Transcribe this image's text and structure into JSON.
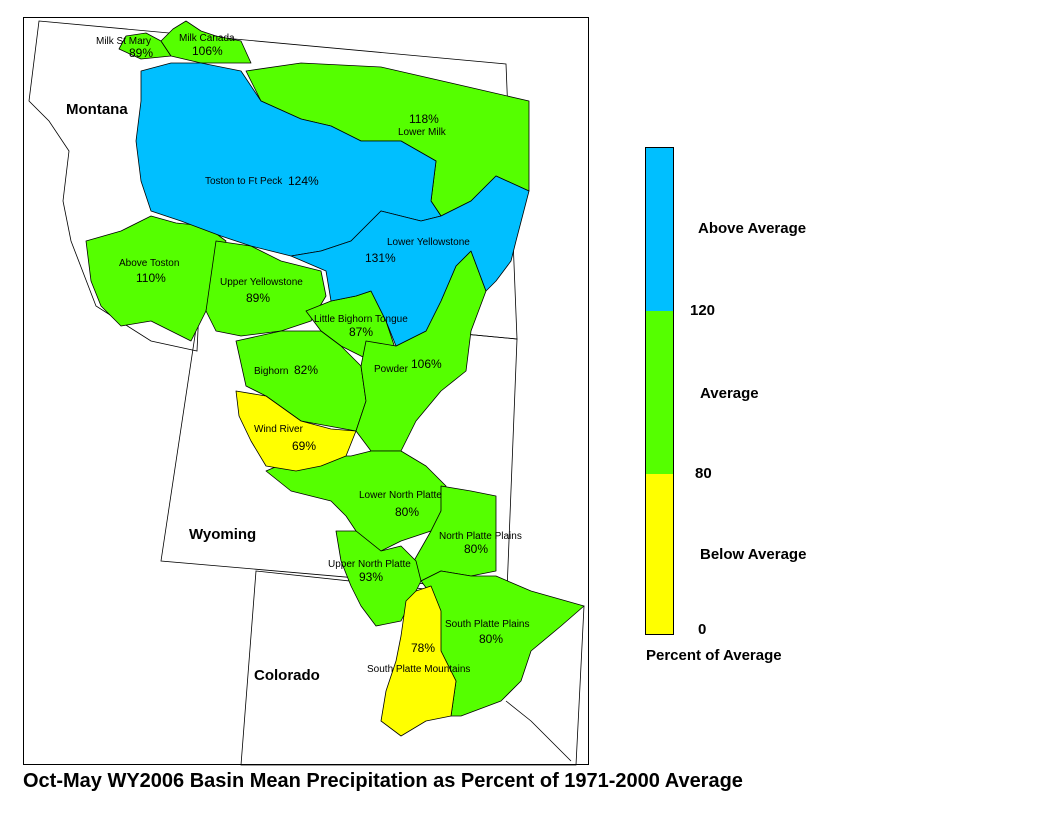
{
  "title": "Oct-May WY2006 Basin Mean Precipitation as Percent of 1971-2000 Average",
  "colors": {
    "above": "#00BFFF",
    "average": "#55FF00",
    "below": "#FFFF00"
  },
  "states": {
    "montana": "Montana",
    "wyoming": "Wyoming",
    "colorado": "Colorado"
  },
  "basins": {
    "milk_st_mary": {
      "name": "Milk St Mary",
      "pct": "89%"
    },
    "milk_canada": {
      "name": "Milk Canada",
      "pct": "106%"
    },
    "lower_milk": {
      "name": "Lower Milk",
      "pct": "118%"
    },
    "toston_ft_peck": {
      "name": "Toston to Ft Peck",
      "pct": "124%"
    },
    "lower_yellowstone": {
      "name": "Lower Yellowstone",
      "pct": "131%"
    },
    "above_toston": {
      "name": "Above Toston",
      "pct": "110%"
    },
    "upper_yellowstone": {
      "name": "Upper Yellowstone",
      "pct": "89%"
    },
    "little_bighorn_tongue": {
      "name": "Little Bighorn Tongue",
      "pct": "87%"
    },
    "bighorn": {
      "name": "Bighorn",
      "pct": "82%"
    },
    "powder": {
      "name": "Powder",
      "pct": "106%"
    },
    "wind_river": {
      "name": "Wind River",
      "pct": "69%"
    },
    "lower_north_platte": {
      "name": "Lower North Platte",
      "pct": "80%"
    },
    "north_platte_plains": {
      "name": "North Platte Plains",
      "pct": "80%"
    },
    "upper_north_platte": {
      "name": "Upper North Platte",
      "pct": "93%"
    },
    "south_platte_plains": {
      "name": "South Platte Plains",
      "pct": "80%"
    },
    "south_platte_mountains": {
      "name": "South Platte Mountains",
      "pct": "78%"
    }
  },
  "legend": {
    "above_label": "Above Average",
    "average_label": "Average",
    "below_label": "Below Average",
    "break_high": "120",
    "break_low": "80",
    "min": "0",
    "caption": "Percent of Average",
    "ranges": [
      {
        "class": "above",
        "from": 120,
        "to": null
      },
      {
        "class": "average",
        "from": 80,
        "to": 120
      },
      {
        "class": "below",
        "from": 0,
        "to": 80
      }
    ]
  }
}
